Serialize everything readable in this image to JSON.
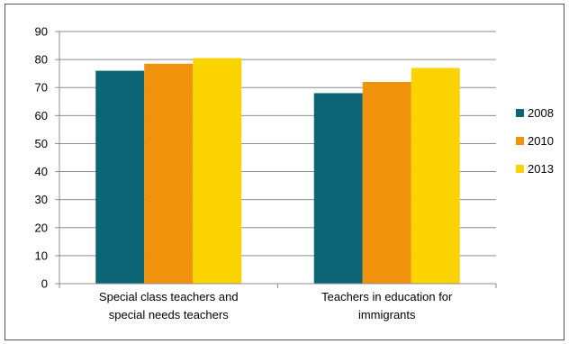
{
  "chart_data": {
    "type": "bar",
    "title": "",
    "xlabel": "",
    "ylabel": "",
    "categories": [
      [
        "Special class teachers and",
        "special needs teachers"
      ],
      [
        "Teachers in education for",
        "immigrants"
      ]
    ],
    "series": [
      {
        "name": "2008",
        "values": [
          76,
          68
        ],
        "color": "#0b6574"
      },
      {
        "name": "2010",
        "values": [
          78.5,
          72
        ],
        "color": "#f0920b"
      },
      {
        "name": "2013",
        "values": [
          80.5,
          77
        ],
        "color": "#fbd400"
      }
    ],
    "ylim": [
      0,
      90
    ],
    "yticks": [
      0,
      10,
      20,
      30,
      40,
      50,
      60,
      70,
      80,
      90
    ],
    "grid": true,
    "legend_position": "right"
  }
}
